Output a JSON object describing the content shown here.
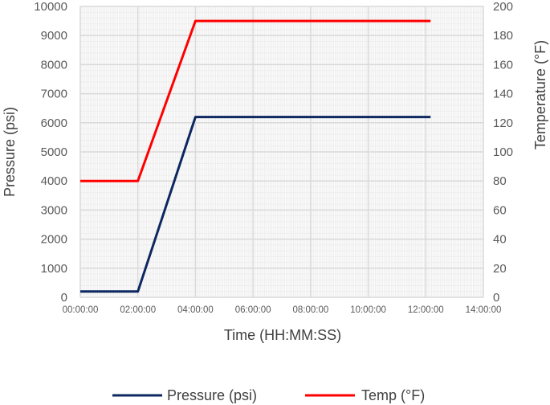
{
  "chart_data": {
    "type": "line",
    "title": "",
    "xlabel": "Time (HH:MM:SS)",
    "ylabel_left": "Pressure (psi)",
    "ylabel_right": "Temperature (°F)",
    "x_ticks": [
      "00:00:00",
      "02:00:00",
      "04:00:00",
      "06:00:00",
      "08:00:00",
      "10:00:00",
      "12:00:00",
      "14:00:00"
    ],
    "xlim_hours": [
      0,
      14
    ],
    "ylim_left": [
      0,
      10000
    ],
    "ylim_right": [
      0,
      200
    ],
    "y_ticks_left": [
      "0",
      "1000",
      "2000",
      "3000",
      "4000",
      "5000",
      "6000",
      "7000",
      "8000",
      "9000",
      "10000"
    ],
    "y_ticks_right": [
      "0",
      "20",
      "40",
      "60",
      "80",
      "100",
      "120",
      "140",
      "160",
      "180",
      "200"
    ],
    "grid": true,
    "legend_position": "bottom",
    "series": [
      {
        "name": "Pressure (psi)",
        "axis": "left",
        "color": "#0d2860",
        "x": [
          "00:00:00",
          "02:00:00",
          "04:00:00",
          "12:10:00"
        ],
        "values": [
          200,
          200,
          6200,
          6200
        ]
      },
      {
        "name": "Temp (°F)",
        "axis": "right",
        "color": "#ff0000",
        "x": [
          "00:00:00",
          "02:00:00",
          "04:00:00",
          "12:10:00"
        ],
        "values": [
          80,
          80,
          190,
          190
        ]
      }
    ]
  }
}
